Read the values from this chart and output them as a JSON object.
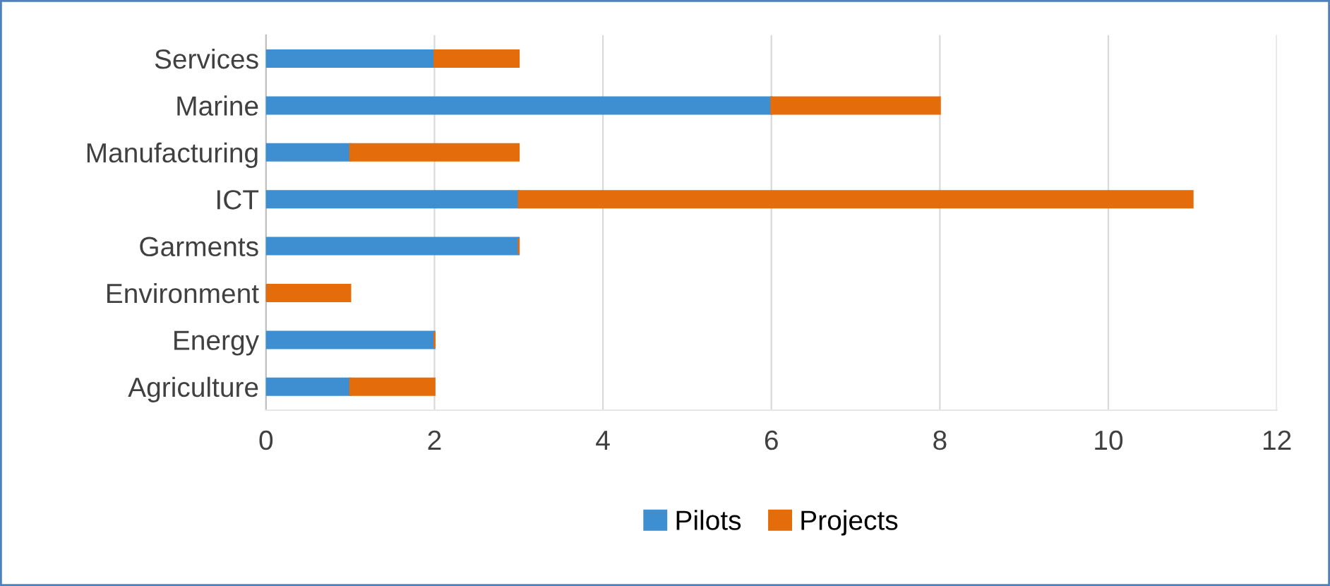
{
  "chart_data": {
    "type": "bar",
    "orientation": "horizontal",
    "stacked": true,
    "categories": [
      "Services",
      "Marine",
      "Manufacturing",
      "ICT",
      "Garments",
      "Environment",
      "Energy",
      "Agriculture"
    ],
    "series": [
      {
        "name": "Pilots",
        "color": "#3d8fd1",
        "values": [
          2,
          6,
          1,
          3,
          3,
          0,
          2,
          1
        ]
      },
      {
        "name": "Projects",
        "color": "#e46c0a",
        "values": [
          1,
          2,
          2,
          8,
          0,
          1,
          0,
          1
        ]
      }
    ],
    "xlim": [
      0,
      12
    ],
    "xticks": [
      0,
      2,
      4,
      6,
      8,
      10,
      12
    ],
    "grid": "x",
    "legend": "bottom"
  }
}
